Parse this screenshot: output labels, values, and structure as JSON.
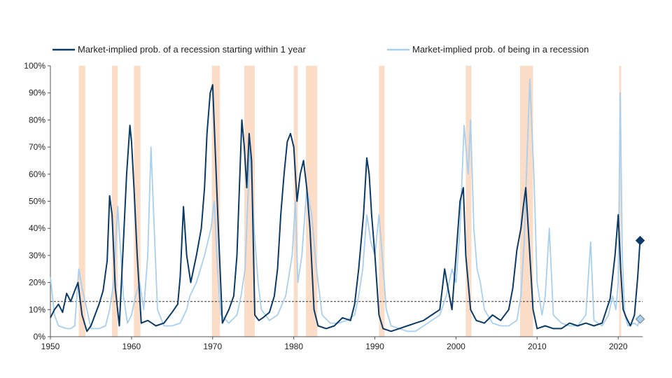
{
  "chart_data": {
    "type": "line",
    "title": "",
    "xlabel": "",
    "ylabel": "",
    "xlim": [
      1950,
      2023
    ],
    "ylim": [
      0,
      100
    ],
    "x_ticks": [
      "1950",
      "1960",
      "1970",
      "1980",
      "1990",
      "2000",
      "2010",
      "2020"
    ],
    "y_ticks": [
      "0%",
      "10%",
      "20%",
      "30%",
      "40%",
      "50%",
      "60%",
      "70%",
      "80%",
      "90%",
      "100%"
    ],
    "legend_position": "top",
    "grid": false,
    "colors": {
      "series_dark": "#0b3a66",
      "series_light": "#a8cfee",
      "recession_band": "#fbdcc7",
      "reference_line": "#333333"
    },
    "reference_line": {
      "y": 13,
      "style": "dashed"
    },
    "recessions": [
      [
        1953.5,
        1954.3
      ],
      [
        1957.6,
        1958.3
      ],
      [
        1960.3,
        1961.1
      ],
      [
        1969.9,
        1970.9
      ],
      [
        1973.9,
        1975.2
      ],
      [
        1980.0,
        1980.5
      ],
      [
        1981.5,
        1982.9
      ],
      [
        1990.5,
        1991.2
      ],
      [
        2001.2,
        2001.9
      ],
      [
        2007.9,
        2009.5
      ],
      [
        2020.1,
        2020.3
      ]
    ],
    "series": [
      {
        "name": "Market-implied prob. of a recession starting within 1 year",
        "x": [
          1950.0,
          1950.5,
          1951.0,
          1951.5,
          1952.0,
          1952.5,
          1953.0,
          1953.4,
          1953.9,
          1954.5,
          1955.0,
          1955.5,
          1956.0,
          1956.5,
          1957.0,
          1957.3,
          1957.6,
          1958.0,
          1958.5,
          1959.0,
          1959.4,
          1959.8,
          1960.0,
          1960.3,
          1960.7,
          1961.2,
          1962.0,
          1962.5,
          1963.0,
          1964.0,
          1965.0,
          1965.7,
          1966.0,
          1966.4,
          1966.8,
          1967.3,
          1968.0,
          1968.6,
          1969.0,
          1969.3,
          1969.7,
          1970.0,
          1970.3,
          1970.7,
          1971.2,
          1972.0,
          1972.6,
          1973.0,
          1973.3,
          1973.6,
          1973.9,
          1974.2,
          1974.5,
          1974.8,
          1975.2,
          1975.7,
          1976.2,
          1977.0,
          1977.6,
          1978.0,
          1978.4,
          1978.8,
          1979.2,
          1979.6,
          1980.0,
          1980.4,
          1980.8,
          1981.2,
          1981.6,
          1982.0,
          1982.5,
          1983.0,
          1984.0,
          1985.0,
          1986.0,
          1987.0,
          1987.5,
          1988.0,
          1988.6,
          1989.0,
          1989.3,
          1989.6,
          1990.0,
          1990.5,
          1991.0,
          1992.0,
          1993.0,
          1994.0,
          1995.0,
          1996.0,
          1997.0,
          1998.0,
          1998.6,
          1999.0,
          1999.5,
          2000.0,
          2000.5,
          2000.9,
          2001.2,
          2001.8,
          2002.5,
          2003.5,
          2004.5,
          2005.5,
          2006.5,
          2007.0,
          2007.5,
          2008.0,
          2008.3,
          2008.6,
          2009.0,
          2009.5,
          2010.0,
          2011.0,
          2012.0,
          2013.0,
          2014.0,
          2015.0,
          2016.0,
          2017.0,
          2018.0,
          2019.0,
          2019.6,
          2020.0,
          2020.3,
          2020.6,
          2021.0,
          2021.5,
          2022.0,
          2022.4,
          2022.7
        ],
        "y": [
          7,
          10,
          12,
          9,
          16,
          13,
          17,
          20,
          8,
          2,
          4,
          8,
          12,
          17,
          28,
          52,
          45,
          18,
          4,
          35,
          60,
          78,
          72,
          55,
          30,
          5,
          6,
          5,
          4,
          5,
          9,
          12,
          22,
          48,
          30,
          20,
          30,
          40,
          55,
          75,
          90,
          93,
          70,
          40,
          5,
          10,
          15,
          30,
          55,
          80,
          70,
          55,
          75,
          65,
          8,
          6,
          7,
          9,
          15,
          25,
          45,
          60,
          72,
          75,
          70,
          50,
          60,
          65,
          55,
          40,
          10,
          4,
          3,
          4,
          7,
          6,
          12,
          25,
          45,
          66,
          60,
          45,
          30,
          8,
          3,
          2,
          3,
          4,
          5,
          6,
          8,
          10,
          25,
          18,
          10,
          30,
          50,
          55,
          30,
          10,
          6,
          5,
          8,
          6,
          10,
          18,
          32,
          40,
          48,
          55,
          35,
          10,
          3,
          4,
          3,
          3,
          5,
          4,
          5,
          4,
          5,
          14,
          30,
          45,
          25,
          10,
          7,
          4,
          8,
          22,
          36
        ]
      },
      {
        "name": "Market-implied prob. of being in a recession",
        "x": [
          1950.0,
          1950.5,
          1951.0,
          1952.0,
          1952.5,
          1953.0,
          1953.5,
          1953.9,
          1954.5,
          1955.0,
          1956.0,
          1956.8,
          1957.3,
          1957.8,
          1958.3,
          1959.0,
          1959.5,
          1960.0,
          1960.5,
          1961.0,
          1961.5,
          1962.0,
          1962.4,
          1962.8,
          1963.2,
          1964.0,
          1965.0,
          1966.0,
          1966.8,
          1967.2,
          1968.0,
          1969.0,
          1969.8,
          1970.2,
          1970.6,
          1971.0,
          1972.0,
          1973.0,
          1973.5,
          1974.0,
          1974.6,
          1975.1,
          1975.6,
          1976.0,
          1977.0,
          1978.0,
          1979.0,
          1979.8,
          1980.2,
          1980.5,
          1981.0,
          1981.6,
          1982.2,
          1982.8,
          1983.5,
          1984.5,
          1985.5,
          1986.5,
          1987.5,
          1988.0,
          1988.5,
          1989.0,
          1989.5,
          1990.0,
          1990.5,
          1990.9,
          1991.4,
          1992.0,
          1993.0,
          1994.0,
          1995.0,
          1996.0,
          1997.0,
          1998.0,
          1998.8,
          1999.5,
          2000.0,
          2000.5,
          2001.0,
          2001.5,
          2001.8,
          2002.2,
          2002.6,
          2003.0,
          2003.5,
          2004.5,
          2005.5,
          2006.5,
          2007.5,
          2008.0,
          2008.4,
          2008.8,
          2009.1,
          2009.6,
          2010.0,
          2010.6,
          2011.0,
          2011.5,
          2012.0,
          2013.0,
          2014.0,
          2015.0,
          2016.0,
          2016.6,
          2017.0,
          2018.0,
          2018.8,
          2019.3,
          2019.7,
          2020.0,
          2020.25,
          2020.5,
          2020.8,
          2021.2,
          2022.0,
          2022.4,
          2022.7
        ],
        "y": [
          22,
          8,
          4,
          3,
          3,
          4,
          25,
          18,
          10,
          3,
          3,
          4,
          10,
          20,
          48,
          15,
          5,
          8,
          15,
          20,
          10,
          30,
          70,
          40,
          10,
          4,
          4,
          5,
          10,
          15,
          20,
          30,
          40,
          50,
          25,
          8,
          5,
          8,
          15,
          25,
          70,
          40,
          20,
          10,
          6,
          8,
          15,
          30,
          50,
          20,
          30,
          55,
          45,
          25,
          8,
          5,
          5,
          6,
          8,
          15,
          25,
          45,
          35,
          30,
          45,
          30,
          10,
          4,
          3,
          2,
          2,
          4,
          6,
          8,
          15,
          25,
          20,
          40,
          78,
          60,
          80,
          40,
          25,
          20,
          10,
          5,
          4,
          4,
          6,
          15,
          35,
          70,
          95,
          60,
          20,
          8,
          15,
          40,
          8,
          5,
          4,
          4,
          8,
          35,
          6,
          4,
          8,
          15,
          10,
          20,
          90,
          30,
          8,
          4,
          5,
          4,
          7
        ]
      }
    ],
    "end_markers": [
      {
        "series": 0,
        "x": 2022.7,
        "y": 35.5,
        "shape": "filled-diamond"
      },
      {
        "series": 1,
        "x": 2022.7,
        "y": 6.5,
        "shape": "open-diamond"
      }
    ]
  }
}
